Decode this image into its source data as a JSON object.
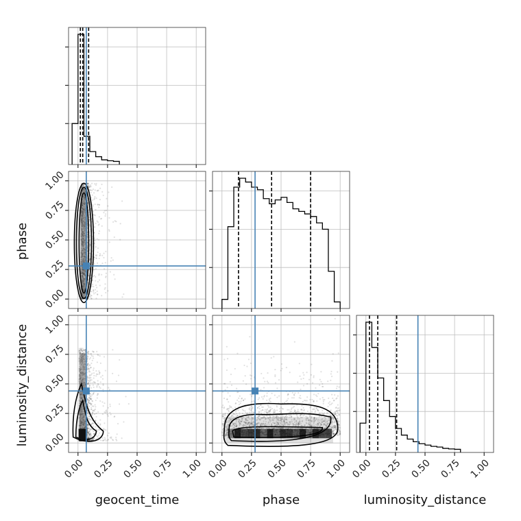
{
  "chart_data": {
    "type": "corner",
    "parameters": [
      "geocent_time",
      "phase",
      "luminosity_distance"
    ],
    "axis_range": [
      -0.08,
      1.08
    ],
    "ticks": [
      0.0,
      0.25,
      0.5,
      0.75,
      1.0
    ],
    "tick_labels": [
      "0.00",
      "0.25",
      "0.50",
      "0.75",
      "1.00"
    ],
    "grid": true,
    "injection": {
      "geocent_time": 0.07,
      "phase": 0.28,
      "luminosity_distance": 0.44
    },
    "quantiles": {
      "geocent_time": [
        0.02,
        0.04,
        0.09
      ],
      "phase": [
        0.14,
        0.42,
        0.75
      ],
      "luminosity_distance": [
        0.03,
        0.1,
        0.26
      ]
    },
    "histograms": {
      "geocent_time": {
        "bins": [
          -0.05,
          0.0,
          0.05,
          0.1,
          0.15,
          0.2,
          0.25,
          0.3,
          0.35
        ],
        "values": [
          0.3,
          1.0,
          0.2,
          0.08,
          0.04,
          0.015,
          0.008,
          0.003
        ]
      },
      "phase": {
        "bins": [
          0.0,
          0.05,
          0.1,
          0.15,
          0.2,
          0.25,
          0.3,
          0.35,
          0.4,
          0.45,
          0.5,
          0.55,
          0.6,
          0.65,
          0.7,
          0.75,
          0.8,
          0.85,
          0.9,
          0.95,
          1.0
        ],
        "values": [
          0.05,
          0.62,
          0.93,
          1.0,
          0.97,
          0.93,
          0.91,
          0.84,
          0.8,
          0.83,
          0.85,
          0.81,
          0.76,
          0.74,
          0.72,
          0.7,
          0.65,
          0.6,
          0.27,
          0.03
        ]
      },
      "luminosity_distance": {
        "bins": [
          -0.05,
          0.0,
          0.05,
          0.1,
          0.15,
          0.2,
          0.25,
          0.3,
          0.35,
          0.4,
          0.45,
          0.5,
          0.55,
          0.6,
          0.65,
          0.7,
          0.75,
          0.8
        ],
        "values": [
          0.2,
          0.96,
          0.77,
          0.54,
          0.37,
          0.25,
          0.16,
          0.11,
          0.08,
          0.06,
          0.045,
          0.035,
          0.025,
          0.02,
          0.01,
          0.006,
          0.003
        ]
      }
    },
    "pairs": [
      {
        "x": "geocent_time",
        "y": "phase",
        "x_center": 0.05,
        "x_spread": 0.04,
        "y_range": [
          0.0,
          0.98
        ]
      },
      {
        "x": "geocent_time",
        "y": "luminosity_distance",
        "x_center": 0.04,
        "x_spread": 0.05,
        "y_range": [
          0.02,
          0.8
        ]
      },
      {
        "x": "phase",
        "y": "luminosity_distance",
        "x_range": [
          0.0,
          1.0
        ],
        "y_center": 0.1,
        "y_spread": 0.12
      }
    ]
  },
  "colors": {
    "truth": "#4682b4",
    "contour": "#000000",
    "axes": "#333333",
    "grid": "#bdbdbd"
  }
}
